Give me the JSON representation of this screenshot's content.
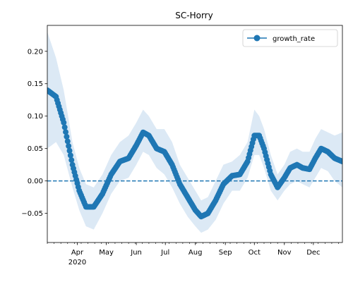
{
  "chart_data": {
    "type": "line",
    "title": "SC-Horry",
    "xlabel": "",
    "ylabel": "",
    "x_range": [
      "2020-03-01",
      "2020-12-31"
    ],
    "ylim": [
      -0.095,
      0.24
    ],
    "yticks": [
      -0.05,
      0.0,
      0.05,
      0.1,
      0.15,
      0.2
    ],
    "ytick_labels": [
      "−0.05",
      "0.00",
      "0.05",
      "0.10",
      "0.15",
      "0.20"
    ],
    "xticks": [
      {
        "date": "2020-04-01",
        "label": "Apr"
      },
      {
        "date": "2020-05-01",
        "label": "May"
      },
      {
        "date": "2020-06-01",
        "label": "Jun"
      },
      {
        "date": "2020-07-01",
        "label": "Jul"
      },
      {
        "date": "2020-08-01",
        "label": "Aug"
      },
      {
        "date": "2020-09-01",
        "label": "Sep"
      },
      {
        "date": "2020-10-01",
        "label": "Oct"
      },
      {
        "date": "2020-11-01",
        "label": "Nov"
      },
      {
        "date": "2020-12-01",
        "label": "Dec"
      }
    ],
    "year_label": "2020",
    "reference_line": {
      "y": 0.0,
      "style": "dashed",
      "color": "#1f77b4"
    },
    "grid": false,
    "legend": {
      "position": "top-right",
      "entries": [
        "growth_rate"
      ]
    },
    "series": [
      {
        "name": "growth_rate",
        "color": "#1f77b4",
        "marker": "circle",
        "band_color": "#dce9f5",
        "points": [
          {
            "x": "2020-03-01",
            "y": 0.14,
            "lo": 0.05,
            "hi": 0.23
          },
          {
            "x": "2020-03-10",
            "y": 0.13,
            "lo": 0.06,
            "hi": 0.19
          },
          {
            "x": "2020-03-18",
            "y": 0.09,
            "lo": 0.04,
            "hi": 0.14
          },
          {
            "x": "2020-03-27",
            "y": 0.025,
            "lo": -0.01,
            "hi": 0.06
          },
          {
            "x": "2020-04-03",
            "y": -0.015,
            "lo": -0.045,
            "hi": 0.02
          },
          {
            "x": "2020-04-10",
            "y": -0.04,
            "lo": -0.07,
            "hi": -0.005
          },
          {
            "x": "2020-04-18",
            "y": -0.04,
            "lo": -0.075,
            "hi": -0.01
          },
          {
            "x": "2020-04-27",
            "y": -0.02,
            "lo": -0.05,
            "hi": 0.01
          },
          {
            "x": "2020-05-06",
            "y": 0.01,
            "lo": -0.02,
            "hi": 0.04
          },
          {
            "x": "2020-05-15",
            "y": 0.03,
            "lo": 0.0,
            "hi": 0.06
          },
          {
            "x": "2020-05-24",
            "y": 0.035,
            "lo": 0.005,
            "hi": 0.07
          },
          {
            "x": "2020-06-01",
            "y": 0.055,
            "lo": 0.025,
            "hi": 0.09
          },
          {
            "x": "2020-06-08",
            "y": 0.075,
            "lo": 0.045,
            "hi": 0.11
          },
          {
            "x": "2020-06-14",
            "y": 0.07,
            "lo": 0.04,
            "hi": 0.1
          },
          {
            "x": "2020-06-22",
            "y": 0.05,
            "lo": 0.02,
            "hi": 0.08
          },
          {
            "x": "2020-06-30",
            "y": 0.045,
            "lo": 0.01,
            "hi": 0.08
          },
          {
            "x": "2020-07-08",
            "y": 0.025,
            "lo": -0.01,
            "hi": 0.06
          },
          {
            "x": "2020-07-16",
            "y": -0.005,
            "lo": -0.035,
            "hi": 0.025
          },
          {
            "x": "2020-07-24",
            "y": -0.025,
            "lo": -0.055,
            "hi": 0.005
          },
          {
            "x": "2020-08-01",
            "y": -0.045,
            "lo": -0.07,
            "hi": -0.015
          },
          {
            "x": "2020-08-07",
            "y": -0.055,
            "lo": -0.08,
            "hi": -0.03
          },
          {
            "x": "2020-08-14",
            "y": -0.05,
            "lo": -0.075,
            "hi": -0.025
          },
          {
            "x": "2020-08-22",
            "y": -0.03,
            "lo": -0.06,
            "hi": 0.0
          },
          {
            "x": "2020-08-30",
            "y": -0.005,
            "lo": -0.035,
            "hi": 0.025
          },
          {
            "x": "2020-09-08",
            "y": 0.008,
            "lo": -0.015,
            "hi": 0.03
          },
          {
            "x": "2020-09-16",
            "y": 0.01,
            "lo": -0.015,
            "hi": 0.04
          },
          {
            "x": "2020-09-24",
            "y": 0.03,
            "lo": 0.005,
            "hi": 0.06
          },
          {
            "x": "2020-10-01",
            "y": 0.07,
            "lo": 0.04,
            "hi": 0.11
          },
          {
            "x": "2020-10-06",
            "y": 0.07,
            "lo": 0.04,
            "hi": 0.1
          },
          {
            "x": "2020-10-11",
            "y": 0.05,
            "lo": 0.02,
            "hi": 0.08
          },
          {
            "x": "2020-10-18",
            "y": 0.01,
            "lo": -0.015,
            "hi": 0.04
          },
          {
            "x": "2020-10-25",
            "y": -0.01,
            "lo": -0.03,
            "hi": 0.01
          },
          {
            "x": "2020-11-01",
            "y": 0.005,
            "lo": -0.015,
            "hi": 0.025
          },
          {
            "x": "2020-11-07",
            "y": 0.02,
            "lo": -0.005,
            "hi": 0.045
          },
          {
            "x": "2020-11-14",
            "y": 0.025,
            "lo": 0.0,
            "hi": 0.05
          },
          {
            "x": "2020-11-20",
            "y": 0.02,
            "lo": -0.005,
            "hi": 0.045
          },
          {
            "x": "2020-11-27",
            "y": 0.018,
            "lo": -0.01,
            "hi": 0.045
          },
          {
            "x": "2020-12-03",
            "y": 0.035,
            "lo": 0.005,
            "hi": 0.065
          },
          {
            "x": "2020-12-09",
            "y": 0.05,
            "lo": 0.02,
            "hi": 0.08
          },
          {
            "x": "2020-12-16",
            "y": 0.045,
            "lo": 0.015,
            "hi": 0.075
          },
          {
            "x": "2020-12-23",
            "y": 0.035,
            "lo": 0.0,
            "hi": 0.07
          },
          {
            "x": "2020-12-31",
            "y": 0.03,
            "lo": -0.01,
            "hi": 0.075
          }
        ]
      }
    ]
  }
}
